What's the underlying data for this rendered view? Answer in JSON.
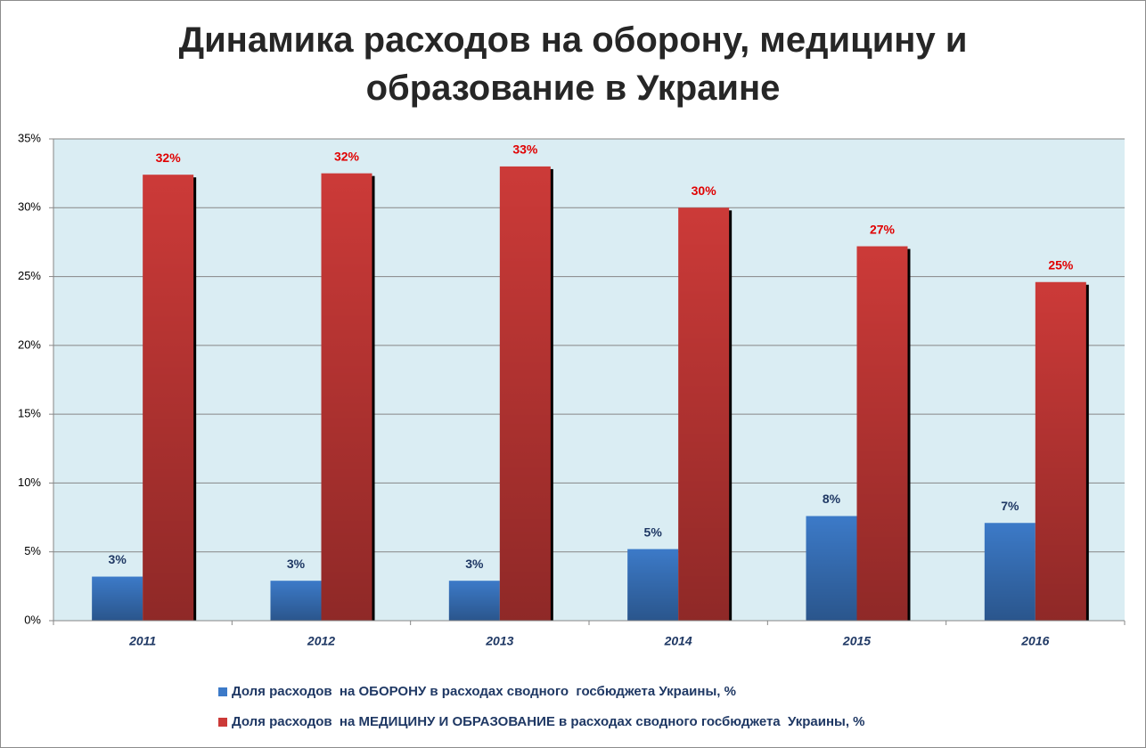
{
  "chart_data": {
    "type": "bar",
    "title": "Динамика расходов на оборону, медицину и образование  в Украине",
    "categories": [
      "2011",
      "2012",
      "2013",
      "2014",
      "2015",
      "2016"
    ],
    "series": [
      {
        "name": "Доля расходов  на ОБОРОНУ в расходах сводного  госбюджета Украины, %",
        "color": "#3c7ac8",
        "label_color": "#1f3864",
        "values": [
          3.2,
          2.9,
          2.9,
          5.2,
          7.6,
          7.1
        ],
        "value_labels": [
          "3%",
          "3%",
          "3%",
          "5%",
          "8%",
          "7%"
        ]
      },
      {
        "name": "Доля расходов  на МЕДИЦИНУ И ОБРАЗОВАНИЕ в расходах сводного госбюджета  Украины, %",
        "color": "#cc3a38",
        "label_color": "#e00000",
        "values": [
          32.4,
          32.5,
          33.0,
          30.0,
          27.2,
          24.6
        ],
        "value_labels": [
          "32%",
          "32%",
          "33%",
          "30%",
          "27%",
          "25%"
        ]
      }
    ],
    "ylim": [
      0,
      35
    ],
    "yticks": [
      {
        "value": 0,
        "label": "0%"
      },
      {
        "value": 5,
        "label": "5%"
      },
      {
        "value": 10,
        "label": "10%"
      },
      {
        "value": 15,
        "label": "15%"
      },
      {
        "value": 20,
        "label": "20%"
      },
      {
        "value": 25,
        "label": "25%"
      },
      {
        "value": 30,
        "label": "30%"
      },
      {
        "value": 35,
        "label": "35%"
      }
    ],
    "grid": true
  }
}
